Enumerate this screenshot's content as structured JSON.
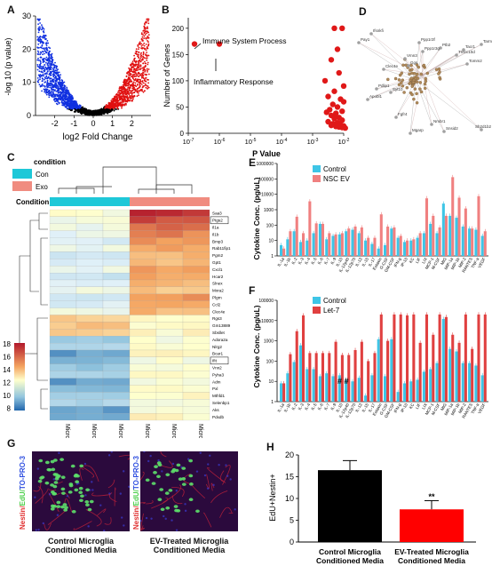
{
  "panels": {
    "A": {
      "label": "A",
      "xlabel": "log2 Fold Change",
      "ylabel": "-log 10 (p value)",
      "xticks": [
        "-2",
        "-1",
        "0",
        "1",
        "2"
      ],
      "yticks": [
        "0",
        "10",
        "20",
        "30"
      ]
    },
    "B": {
      "label": "B",
      "xlabel": "P Value",
      "ylabel": "Number of Genes",
      "yticks": [
        "0",
        "50",
        "100",
        "150",
        "200"
      ],
      "xticks": [
        "10-7",
        "10-6",
        "10-5",
        "10-4",
        "10-3",
        "10-2"
      ],
      "annot1": "Immune System Process",
      "annot2": "Inflammatory Response"
    },
    "C": {
      "label": "C",
      "legend_title": "condition",
      "legend_items": [
        "Con",
        "Exo"
      ],
      "condition_label": "Condition",
      "colorbar_ticks": [
        "18",
        "16",
        "14",
        "12",
        "10",
        "8"
      ],
      "columns": [
        "Microglia-Con-2",
        "Microglia-Con-4",
        "Microglia-Con-3",
        "Microglia-Exo-2",
        "Microglia-Exo-3",
        "Microglia-Exo-1"
      ],
      "genes": [
        "Saa3",
        "Ptgs2",
        "Il1a",
        "Il1b",
        "Bmp3",
        "Rab11fip1",
        "Pgm2",
        "Gpt1",
        "Cxcl1",
        "Hcar2",
        "Slnex",
        "Mxra2",
        "Plgrn",
        "Ccl2",
        "Clec4e",
        "Rgs3",
        "Gm13889",
        "Sbsllet",
        "Adora2a",
        "Nlrg2",
        "Bcar1",
        "Ifit",
        "Vnn2",
        "Pyha3",
        "Adm",
        "Pxl",
        "Mthfd1",
        "Selenbp1",
        "Aks",
        "Pdxdb"
      ]
    },
    "D": {
      "label": "D",
      "nodes": [
        "Ifsnkfi",
        "Pay1",
        "Ppp1r3f",
        "Ptb2",
        "Tacr1",
        "Tarm1",
        "Ppp1r3g",
        "Tnsrc10d",
        "Vmn3",
        "Ggs",
        "Clec4e",
        "Pdlip1",
        "Syt10",
        "Apobl1",
        "Fgfr4",
        "Nmbr1",
        "Mgarp",
        "Snsid2",
        "Sh2d1b2",
        "Tomm2"
      ]
    },
    "E": {
      "label": "E",
      "ylabel": "Cytokine Conc. (pg/uL)",
      "legend": [
        "Control",
        "NSC EV"
      ],
      "yticks": [
        "1",
        "10",
        "100",
        "1000",
        "10000",
        "100000",
        "1000000"
      ]
    },
    "F": {
      "label": "F",
      "ylabel": "Cytokine Conc. (pg/uL)",
      "legend": [
        "Control",
        "Let-7"
      ],
      "yticks": [
        "1",
        "10",
        "100",
        "1000",
        "10000",
        "100000"
      ],
      "hash_marks": "# #"
    },
    "G": {
      "label": "G",
      "stain_label": [
        "Nestin/",
        "EdU/",
        "TO-PRO-3"
      ],
      "caption1": "Control Microglia Conditioned Media",
      "caption2": "EV-Treated Microglia Conditioned Media"
    },
    "H": {
      "label": "H",
      "ylabel": "EdU+Nestin+",
      "yticks": [
        "0",
        "5",
        "10",
        "15",
        "20"
      ],
      "sig": "**",
      "categories": [
        "Control Microglia Conditioned Media",
        "EV-Treated Microglia Conditioned Media"
      ]
    }
  },
  "chart_data": [
    {
      "type": "bar",
      "panel": "E",
      "scale": "log",
      "categories": [
        "IL-1a",
        "IL-1b",
        "IL-2",
        "IL-3",
        "IL-4",
        "IL-5",
        "IL-6",
        "IL-7",
        "IL-9",
        "IL-10",
        "IL-12p40",
        "IL-12p70",
        "IL-13",
        "IL-15",
        "IL-17",
        "Eotaxin",
        "G-CSF",
        "GM-CSF",
        "IFN-g",
        "IP-10",
        "KC",
        "LIF",
        "LIX",
        "MCP-1",
        "M-CSF",
        "MIG",
        "MIP-1a",
        "MIP-1b",
        "MIP-2",
        "RANTES",
        "TNF-a",
        "VEGF"
      ],
      "series": [
        {
          "name": "Control",
          "color": "#3ec5e6",
          "values": [
            5,
            12,
            40,
            8,
            10,
            30,
            120,
            12,
            20,
            25,
            40,
            50,
            30,
            10,
            6,
            3,
            5,
            60,
            15,
            8,
            10,
            15,
            30,
            120,
            30,
            2500,
            400,
            300,
            80,
            60,
            50,
            20
          ]
        },
        {
          "name": "NSC EV",
          "color": "#f08080",
          "values": [
            3,
            40,
            350,
            30,
            3500,
            130,
            120,
            30,
            25,
            30,
            60,
            80,
            70,
            15,
            15,
            500,
            80,
            70,
            20,
            10,
            12,
            30,
            5500,
            400,
            70,
            400,
            130000,
            6000,
            1200,
            60,
            7500,
            40
          ]
        }
      ]
    },
    {
      "type": "bar",
      "panel": "F",
      "scale": "log",
      "categories": [
        "IL-1a",
        "IL-1b",
        "IL-2",
        "IL-3",
        "IL-4",
        "IL-5",
        "IL-6",
        "IL-7",
        "IL-9",
        "IL-10",
        "IL-12p40",
        "IL-12p70",
        "IL-13",
        "IL-15",
        "IL-17",
        "Eotaxin",
        "G-CSF",
        "GM-CSF",
        "IFN-g",
        "IP-10",
        "KC",
        "LIF",
        "LIX",
        "MCP-1",
        "M-CSF",
        "MIG",
        "MIP-1a",
        "MIP-1b",
        "MIP-2",
        "RANTES",
        "TNF-a",
        "VEGF"
      ],
      "series": [
        {
          "name": "Control",
          "color": "#3ec5e6",
          "values": [
            8,
            25,
            90,
            600,
            40,
            40,
            18,
            25,
            18,
            20,
            12,
            10,
            15,
            2,
            20,
            1200,
            18,
            1200,
            3,
            8,
            10,
            12,
            30,
            40,
            80,
            12000,
            400,
            300,
            80,
            80,
            60,
            20
          ]
        },
        {
          "name": "Let-7",
          "color": "#e04040",
          "values": [
            8,
            220,
            3000,
            18000,
            250,
            250,
            250,
            250,
            900,
            200,
            200,
            350,
            900,
            100,
            250,
            20000,
            1000,
            20000,
            20000,
            18000,
            20000,
            800,
            20000,
            2000,
            20000,
            15000,
            2000,
            800,
            20000,
            400,
            20000,
            20000
          ]
        }
      ]
    },
    {
      "type": "bar",
      "panel": "H",
      "categories": [
        "Control Microglia Conditioned Media",
        "EV-Treated Microglia Conditioned Media"
      ],
      "values": [
        16.5,
        7.5
      ],
      "errors": [
        2.2,
        2.0
      ],
      "colors": [
        "#000000",
        "#ff0000"
      ],
      "ylim": [
        0,
        20
      ]
    },
    {
      "type": "scatter",
      "panel": "B",
      "annotated_points": [
        {
          "name": "Immune System Process",
          "p_exp": -6.8,
          "genes": 170
        },
        {
          "name": "Inflammatory Response",
          "p_exp": -6.0,
          "genes": 170
        }
      ]
    }
  ]
}
